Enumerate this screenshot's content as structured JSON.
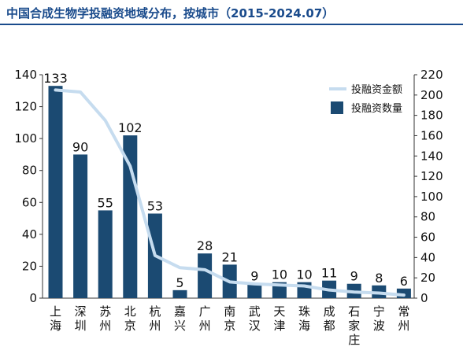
{
  "header": {
    "title": "中国合成生物学投融资地域分布，按城市（2015-2024.07）"
  },
  "colors": {
    "title": "#1a4b8c",
    "bar": "#1b4a72",
    "line": "#c6dcef"
  },
  "chart_data": {
    "type": "bar",
    "categories": [
      "上海",
      "深圳",
      "苏州",
      "北京",
      "杭州",
      "嘉兴",
      "广州",
      "南京",
      "武汉",
      "天津",
      "珠海",
      "成都",
      "石家庄",
      "宁波",
      "常州"
    ],
    "series": [
      {
        "name": "投融资数量",
        "type": "bar",
        "axis": "left",
        "values": [
          133,
          90,
          55,
          102,
          53,
          5,
          28,
          21,
          9,
          10,
          10,
          11,
          9,
          8,
          6
        ]
      },
      {
        "name": "投融资金额",
        "type": "line",
        "axis": "right",
        "values": [
          205,
          203,
          175,
          130,
          42,
          30,
          28,
          16,
          14,
          13,
          12,
          8,
          6,
          5,
          3
        ]
      }
    ],
    "y_left": {
      "min": 0,
      "max": 140,
      "ticks": [
        0,
        20,
        40,
        60,
        80,
        100,
        120,
        140
      ]
    },
    "y_right": {
      "min": 0,
      "max": 220,
      "ticks": [
        0,
        20,
        40,
        60,
        80,
        100,
        120,
        140,
        160,
        180,
        200,
        220
      ]
    },
    "legend": {
      "position": "top-right"
    },
    "grid": false
  }
}
